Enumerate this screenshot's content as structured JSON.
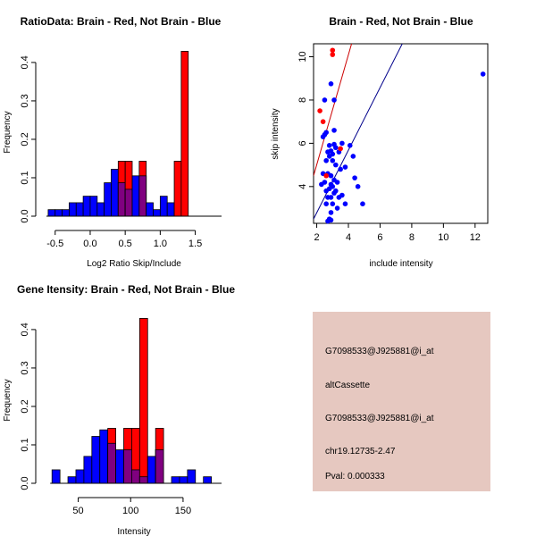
{
  "chart_data": [
    {
      "type": "bar",
      "subtype": "overlaid-histogram",
      "title": "RatioData: Brain - Red, Not Brain - Blue",
      "xlabel": "Log2 Ratio Skip/Include",
      "ylabel": "Frequency",
      "xlim": [
        -0.65,
        1.85
      ],
      "ylim": [
        0,
        0.43
      ],
      "xticks": [
        -0.5,
        0.0,
        0.5,
        1.0,
        1.5
      ],
      "xtick_labels": [
        "-0.5",
        "0.0",
        "0.5",
        "1.0",
        "1.5"
      ],
      "yticks": [
        0.0,
        0.1,
        0.2,
        0.3,
        0.4
      ],
      "ytick_labels": [
        "0.0",
        "0.1",
        "0.2",
        "0.3",
        "0.4"
      ],
      "bin_start": -0.6,
      "bin_width": 0.1,
      "series": [
        {
          "name": "Not Brain",
          "color": "#0000ff",
          "values": [
            0.017,
            0.017,
            0.017,
            0.035,
            0.035,
            0.052,
            0.052,
            0.035,
            0.087,
            0.122,
            0.087,
            0.07,
            0.105,
            0.105,
            0.035,
            0.017,
            0.052,
            0.035,
            0.0,
            0.0,
            0.0,
            0.0,
            0.0,
            0.0
          ]
        },
        {
          "name": "Brain",
          "color": "#ff0000",
          "values": [
            0,
            0,
            0,
            0,
            0,
            0,
            0,
            0,
            0,
            0,
            0.143,
            0.143,
            0,
            0.143,
            0,
            0,
            0,
            0,
            0.143,
            0.429,
            0,
            0,
            0,
            0
          ]
        }
      ],
      "overlap_color": "#800080"
    },
    {
      "type": "scatter",
      "title": "Brain - Red, Not Brain - Blue",
      "xlabel": "include intensity",
      "ylabel": "skip intensity",
      "xlim": [
        1.8,
        12.8
      ],
      "ylim": [
        2.3,
        10.6
      ],
      "xticks": [
        2,
        4,
        6,
        8,
        10,
        12
      ],
      "xtick_labels": [
        "2",
        "4",
        "6",
        "8",
        "10",
        "12"
      ],
      "yticks": [
        4,
        6,
        8,
        10
      ],
      "ytick_labels": [
        "4",
        "6",
        "8",
        "10"
      ],
      "series": [
        {
          "name": "Not Brain",
          "color": "#0000ff",
          "points": [
            [
              2.9,
              8.75
            ],
            [
              2.5,
              8.0
            ],
            [
              3.1,
              8.0
            ],
            [
              3.1,
              6.6
            ],
            [
              2.5,
              6.4
            ],
            [
              2.4,
              6.3
            ],
            [
              2.6,
              6.5
            ],
            [
              3.6,
              6.0
            ],
            [
              3.1,
              5.95
            ],
            [
              2.8,
              5.9
            ],
            [
              3.2,
              5.8
            ],
            [
              2.9,
              5.65
            ],
            [
              2.7,
              5.6
            ],
            [
              2.8,
              5.4
            ],
            [
              3.0,
              5.5
            ],
            [
              3.4,
              5.6
            ],
            [
              2.6,
              5.2
            ],
            [
              3.2,
              5.0
            ],
            [
              3.0,
              5.2
            ],
            [
              3.5,
              4.8
            ],
            [
              3.8,
              4.9
            ],
            [
              4.1,
              5.9
            ],
            [
              4.3,
              5.4
            ],
            [
              2.4,
              4.6
            ],
            [
              2.7,
              4.6
            ],
            [
              2.9,
              4.5
            ],
            [
              3.1,
              4.3
            ],
            [
              3.3,
              4.2
            ],
            [
              3.0,
              4.0
            ],
            [
              2.8,
              3.9
            ],
            [
              2.6,
              3.8
            ],
            [
              2.5,
              4.2
            ],
            [
              2.9,
              4.1
            ],
            [
              3.2,
              3.8
            ],
            [
              3.6,
              3.6
            ],
            [
              4.4,
              4.4
            ],
            [
              4.6,
              4.0
            ],
            [
              2.7,
              3.5
            ],
            [
              2.9,
              3.5
            ],
            [
              3.1,
              3.7
            ],
            [
              3.4,
              3.5
            ],
            [
              3.0,
              3.2
            ],
            [
              3.3,
              3.0
            ],
            [
              2.6,
              3.2
            ],
            [
              3.8,
              3.2
            ],
            [
              4.9,
              3.2
            ],
            [
              2.9,
              2.8
            ],
            [
              2.8,
              2.5
            ],
            [
              2.9,
              2.45
            ],
            [
              2.7,
              2.4
            ],
            [
              2.3,
              4.1
            ],
            [
              12.5,
              9.2
            ]
          ]
        },
        {
          "name": "Brain",
          "color": "#ff0000",
          "points": [
            [
              3.0,
              10.3
            ],
            [
              3.0,
              10.1
            ],
            [
              2.2,
              7.5
            ],
            [
              2.4,
              7.0
            ],
            [
              3.5,
              5.75
            ],
            [
              2.6,
              4.5
            ]
          ]
        }
      ],
      "lines": [
        {
          "name": "Brain fit",
          "color": "#cc0000",
          "from": [
            1.8,
            4.5
          ],
          "to": [
            4.2,
            10.6
          ]
        },
        {
          "name": "Not Brain fit",
          "color": "#00008b",
          "from": [
            1.8,
            2.5
          ],
          "to": [
            7.4,
            10.6
          ]
        }
      ]
    },
    {
      "type": "bar",
      "subtype": "overlaid-histogram",
      "title": "Gene Itensity: Brain - Red, Not Brain - Blue",
      "xlabel": "Intensity",
      "ylabel": "Frequency",
      "xlim": [
        18,
        185
      ],
      "ylim": [
        0,
        0.43
      ],
      "xticks": [
        50,
        100,
        150
      ],
      "xtick_labels": [
        "50",
        "100",
        "150"
      ],
      "yticks": [
        0.0,
        0.1,
        0.2,
        0.3,
        0.4
      ],
      "ytick_labels": [
        "0.0",
        "0.1",
        "0.2",
        "0.3",
        "0.4"
      ],
      "bin_start": 25,
      "bin_width": 7.6,
      "series": [
        {
          "name": "Not Brain",
          "color": "#0000ff",
          "values": [
            0.035,
            0.0,
            0.017,
            0.035,
            0.07,
            0.122,
            0.139,
            0.104,
            0.087,
            0.087,
            0.035,
            0.017,
            0.07,
            0.087,
            0.0,
            0.017,
            0.017,
            0.035,
            0.0,
            0.017
          ]
        },
        {
          "name": "Brain",
          "color": "#ff0000",
          "values": [
            0,
            0,
            0,
            0,
            0,
            0,
            0,
            0.143,
            0,
            0.143,
            0.143,
            0.429,
            0,
            0.143,
            0,
            0,
            0,
            0,
            0,
            0
          ]
        }
      ],
      "overlap_color": "#800080"
    }
  ],
  "info_panel": {
    "background": "#e6c8c0",
    "lines": [
      "G7098533@J925881@i_at",
      "altCassette",
      "G7098533@J925881@i_at",
      "chr19.12735-2.47"
    ],
    "pval_text": "Pval: 0.000333",
    "pval_color": "#8b0000"
  }
}
